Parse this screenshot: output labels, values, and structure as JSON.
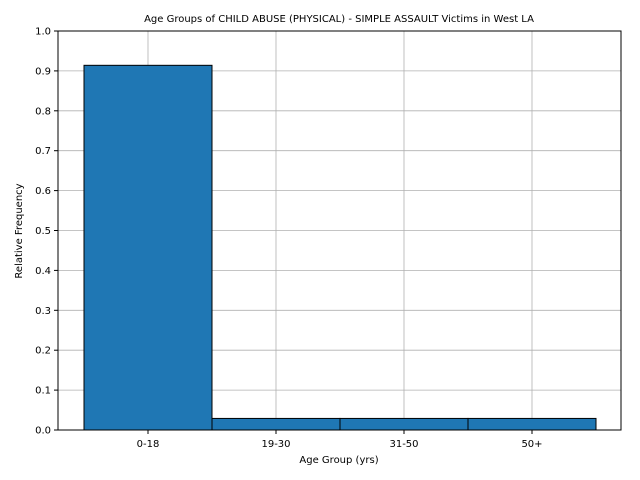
{
  "chart_data": {
    "type": "bar",
    "title": "Age Groups of CHILD ABUSE (PHYSICAL) - SIMPLE ASSAULT Victims in West LA",
    "xlabel": "Age Group (yrs)",
    "ylabel": "Relative Frequency",
    "categories": [
      "0-18",
      "19-30",
      "31-50",
      "50+"
    ],
    "values": [
      0.914,
      0.029,
      0.029,
      0.029
    ],
    "ylim": [
      0,
      1.0
    ],
    "yticks": [
      0.0,
      0.1,
      0.2,
      0.3,
      0.4,
      0.5,
      0.6,
      0.7,
      0.8,
      0.9,
      1.0
    ],
    "ytick_labels": [
      "0.0",
      "0.1",
      "0.2",
      "0.3",
      "0.4",
      "0.5",
      "0.6",
      "0.7",
      "0.8",
      "0.9",
      "1.0"
    ],
    "grid": true,
    "colors": {
      "bar_fill": "#1f77b4",
      "bar_edge": "#000000",
      "grid": "#b0b0b0"
    }
  }
}
